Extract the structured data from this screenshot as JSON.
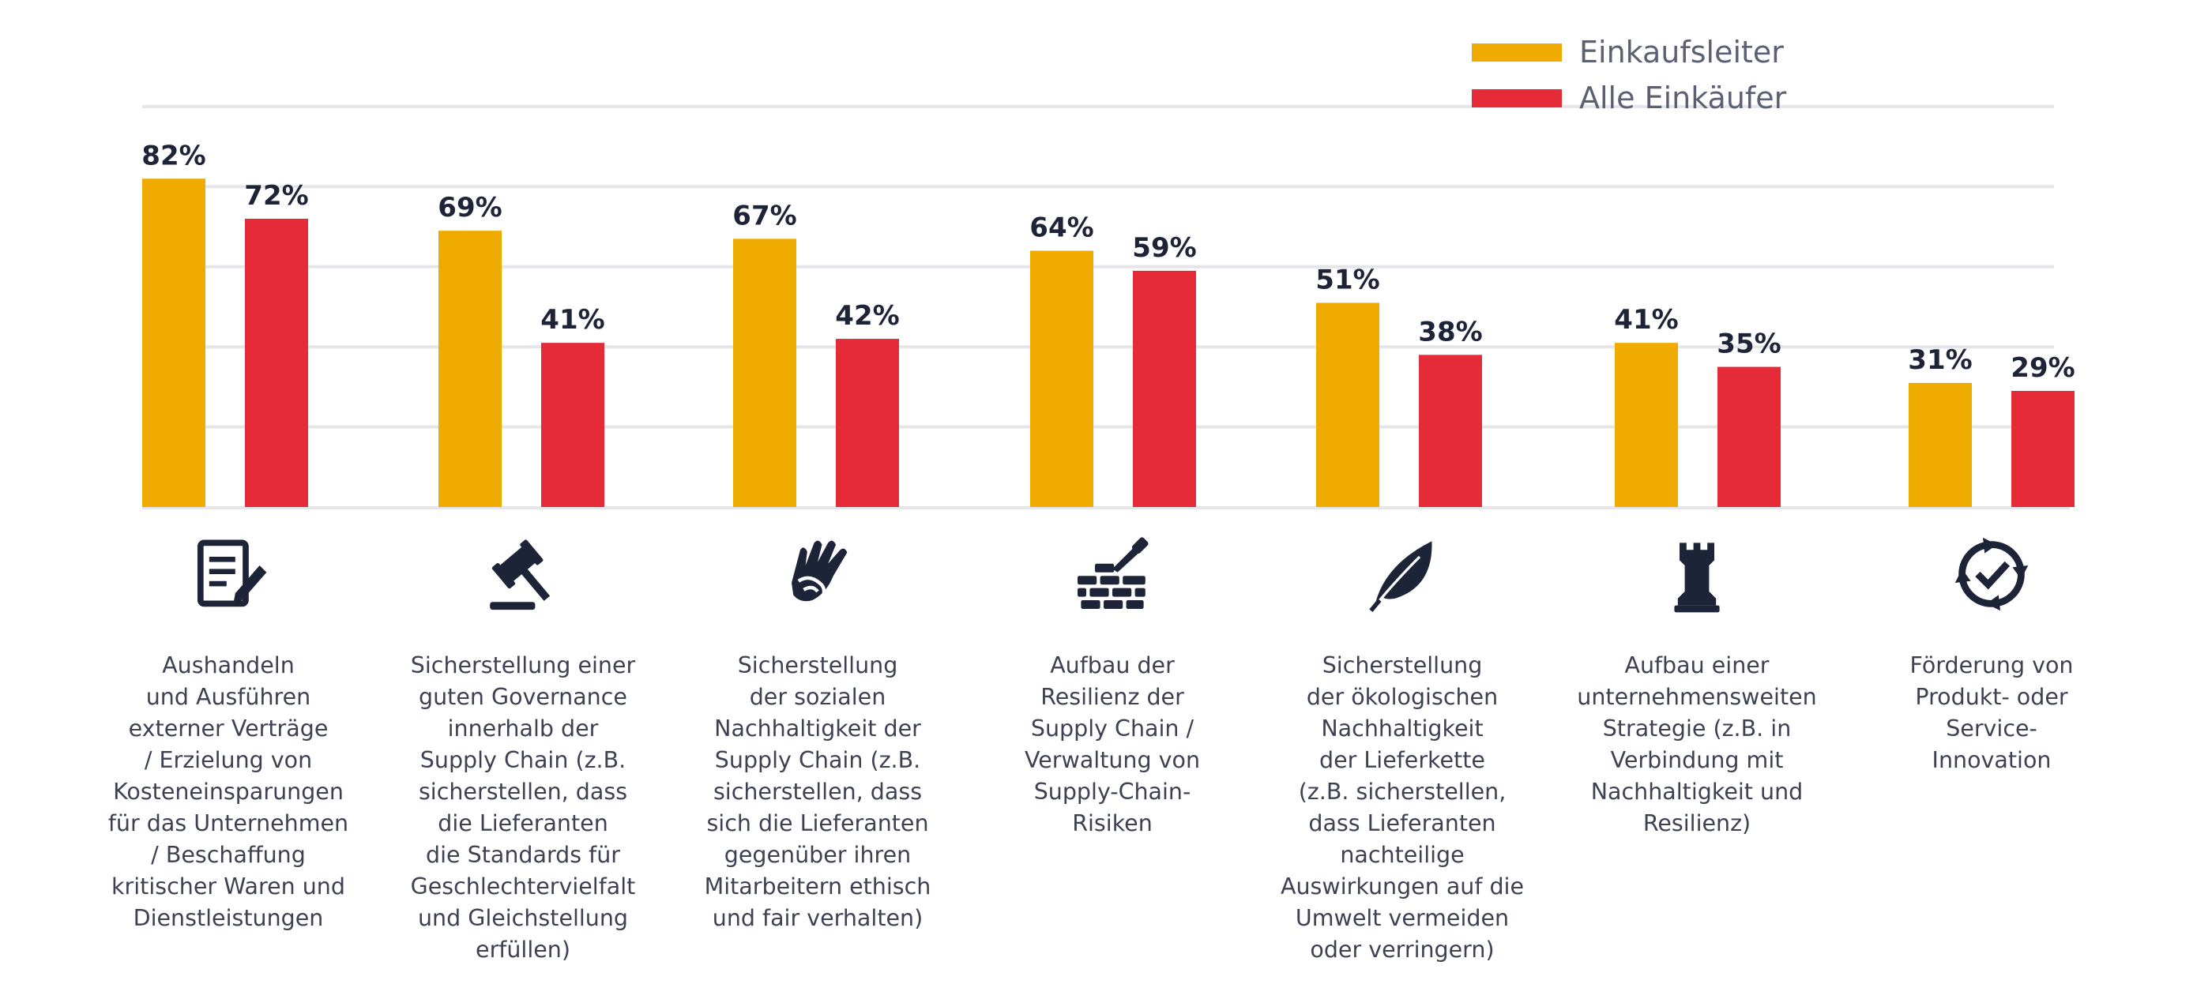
{
  "chart_data": {
    "type": "bar",
    "categories": [
      "Aushandeln\nund Ausführen\nexterner Verträge\n/ Erzielung von\nKosteneinsparungen\nfür das Unternehmen\n/ Beschaffung\nkritischer Waren und\nDienstleistungen",
      "Sicherstellung einer\nguten Governance\ninnerhalb der\nSupply Chain (z.B.\nsicherstellen, dass\ndie Lieferanten\ndie Standards für\nGeschlechtervielfalt\nund Gleichstellung\nerfüllen)",
      "Sicherstellung\nder sozialen\nNachhaltigkeit der\nSupply Chain (z.B.\nsicherstellen, dass\nsich die Lieferanten\ngegenüber ihren\nMitarbeitern ethisch\nund fair verhalten)",
      "Aufbau der\nResilienz der\nSupply Chain /\nVerwaltung von\nSupply-Chain-\nRisiken",
      "Sicherstellung\nder ökologischen\nNachhaltigkeit\nder Lieferkette\n(z.B. sicherstellen,\ndass Lieferanten\nnachteilige\nAuswirkungen auf die\nUmwelt vermeiden\noder verringern)",
      "Aufbau einer\nunternehmensweiten\nStrategie (z.B. in\nVerbindung mit\nNachhaltigkeit und\nResilienz)",
      "Förderung von\nProdukt- oder\nService-\nInnovation"
    ],
    "series": [
      {
        "name": "Einkaufsleiter",
        "color": "#f0ab00",
        "values": [
          82,
          69,
          67,
          64,
          51,
          41,
          31
        ]
      },
      {
        "name": "Alle Einkäufer",
        "color": "#e52a38",
        "values": [
          72,
          41,
          42,
          59,
          38,
          35,
          29
        ]
      }
    ],
    "value_suffix": "%",
    "ylim": [
      0,
      100
    ],
    "grid": true,
    "legend": "top-right",
    "icons": [
      "contract-icon",
      "gavel-icon",
      "handshake-icon",
      "brick-wall-icon",
      "leaf-icon",
      "chess-rook-icon",
      "innovation-cycle-icon"
    ]
  }
}
